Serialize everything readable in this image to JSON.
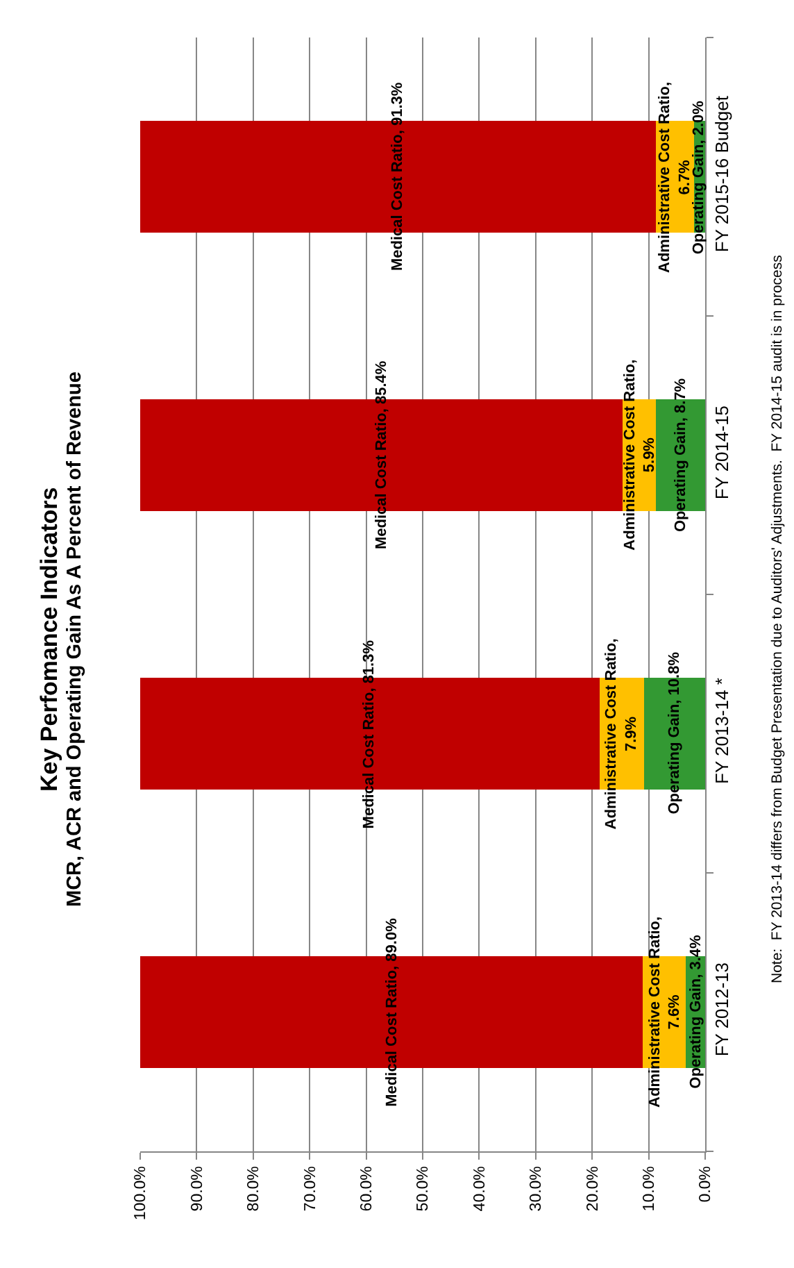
{
  "chart_data": {
    "type": "bar",
    "orientation": "horizontal",
    "stacked": true,
    "title": "Key Perfomance Indicators",
    "subtitle": "MCR, ACR and Operating Gain As A Percent of Revenue",
    "categories": [
      "FY 2015-16 Budget",
      "FY 2014-15",
      "FY 2013-14 *",
      "FY 2012-13"
    ],
    "series": [
      {
        "color": "#339933",
        "values": [
          2.0,
          8.7,
          10.8,
          3.4
        ],
        "value_labels": [
          "Operating Gain, 2.0%",
          "Operating Gain, 8.7%",
          "Operating Gain, 10.8%",
          "Operating Gain, 3.4%"
        ]
      },
      {
        "color": "#ffc000",
        "values": [
          6.7,
          5.9,
          7.9,
          7.6
        ],
        "value_labels": [
          "Administrative Cost Ratio, 6.7%",
          "Administrative Cost Ratio, 5.9%",
          "Administrative Cost Ratio, 7.9%",
          "Administrative Cost Ratio, 7.6%"
        ]
      },
      {
        "color": "#c00000",
        "values": [
          91.3,
          85.4,
          81.3,
          89.0
        ],
        "value_labels": [
          "Medical Cost Ratio, 91.3%",
          "Medical Cost Ratio, 85.4%",
          "Medical Cost Ratio, 81.3%",
          "Medical Cost Ratio, 89.0%"
        ]
      }
    ],
    "xlim": [
      100,
      0
    ],
    "xticks": [
      {
        "value": 100,
        "label": "100.0%"
      },
      {
        "value": 90,
        "label": "90.0%"
      },
      {
        "value": 80,
        "label": "80.0%"
      },
      {
        "value": 70,
        "label": "70.0%"
      },
      {
        "value": 60,
        "label": "60.0%"
      },
      {
        "value": 50,
        "label": "50.0%"
      },
      {
        "value": 40,
        "label": "40.0%"
      },
      {
        "value": 30,
        "label": "30.0%"
      },
      {
        "value": 20,
        "label": "20.0%"
      },
      {
        "value": 10,
        "label": "10.0%"
      },
      {
        "value": 0,
        "label": "0.0%"
      }
    ],
    "grid": "x",
    "annotations": [
      "Note:  FY 2013-14 differs from Budget Presentation due to Auditors' Adjustments.  FY 2014-15 audit is in process"
    ]
  }
}
